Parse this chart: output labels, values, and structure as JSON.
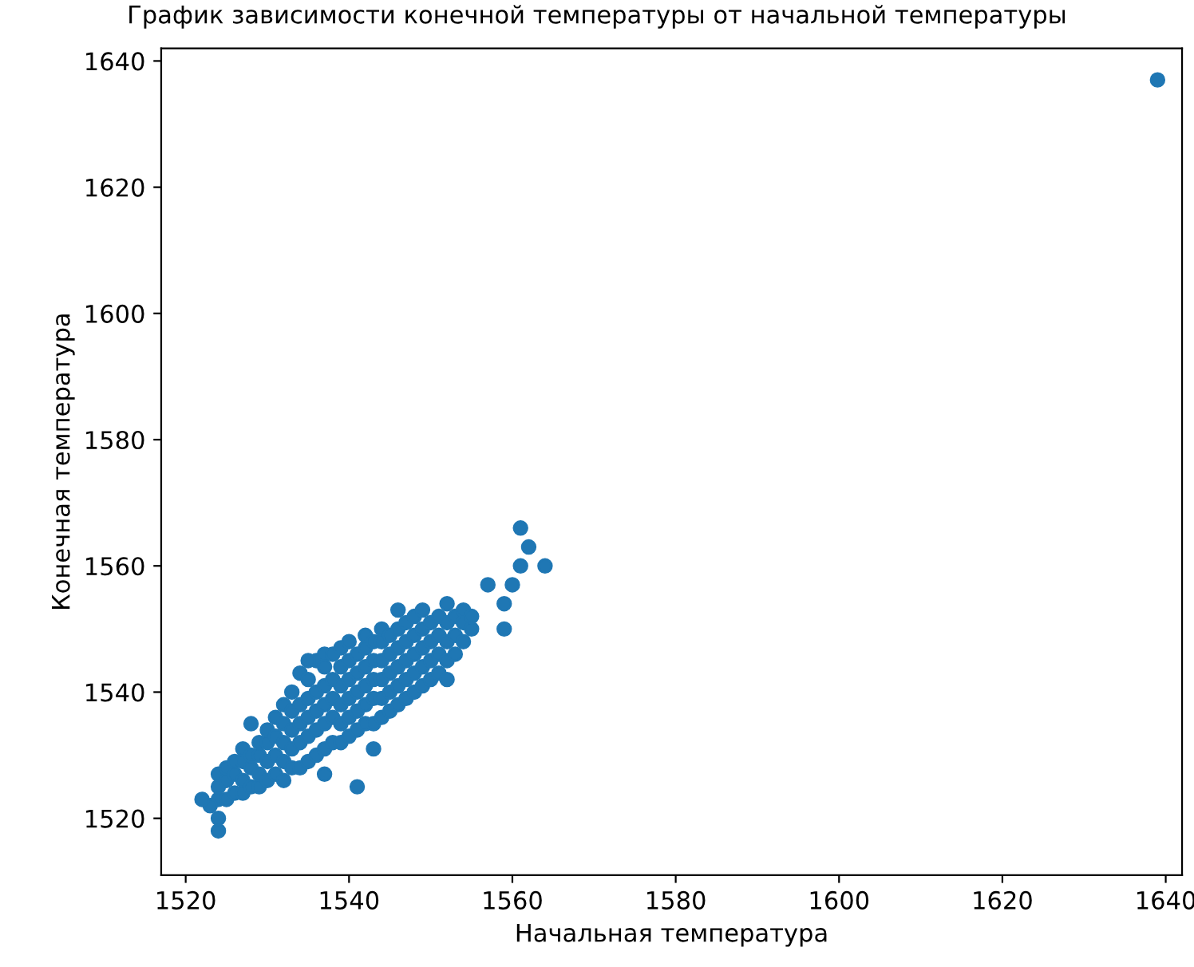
{
  "chart_data": {
    "type": "scatter",
    "title": "График зависимости конечной температуры от начальной температуры",
    "xlabel": "Начальная температура",
    "ylabel": "Конечная температура",
    "marker": "circle",
    "grid": false,
    "xlim": [
      1517,
      1642
    ],
    "ylim": [
      1511,
      1642
    ],
    "xticks": [
      1520,
      1540,
      1560,
      1580,
      1600,
      1620,
      1640
    ],
    "yticks": [
      1520,
      1540,
      1560,
      1580,
      1600,
      1620,
      1640
    ],
    "series": [
      {
        "color": "#1f77b4",
        "x": [
          1524,
          1524,
          1524,
          1525,
          1525,
          1525,
          1526,
          1526,
          1526,
          1527,
          1527,
          1527,
          1527,
          1528,
          1528,
          1528,
          1529,
          1529,
          1529,
          1529,
          1530,
          1530,
          1530,
          1530,
          1531,
          1531,
          1531,
          1531,
          1532,
          1532,
          1532,
          1532,
          1532,
          1533,
          1533,
          1533,
          1533,
          1533,
          1534,
          1534,
          1534,
          1534,
          1534,
          1535,
          1535,
          1535,
          1535,
          1535,
          1536,
          1536,
          1536,
          1536,
          1536,
          1537,
          1537,
          1537,
          1537,
          1537,
          1537,
          1538,
          1538,
          1538,
          1538,
          1538,
          1539,
          1539,
          1539,
          1539,
          1539,
          1539,
          1540,
          1540,
          1540,
          1540,
          1540,
          1540,
          1541,
          1541,
          1541,
          1541,
          1541,
          1542,
          1542,
          1542,
          1542,
          1542,
          1542,
          1543,
          1543,
          1543,
          1543,
          1543,
          1544,
          1544,
          1544,
          1544,
          1544,
          1544,
          1545,
          1545,
          1545,
          1545,
          1545,
          1546,
          1546,
          1546,
          1546,
          1546,
          1547,
          1547,
          1547,
          1547,
          1547,
          1548,
          1548,
          1548,
          1548,
          1548,
          1549,
          1549,
          1549,
          1549,
          1549,
          1550,
          1550,
          1550,
          1550,
          1551,
          1551,
          1551,
          1551,
          1552,
          1552,
          1552,
          1552,
          1553,
          1553,
          1553,
          1554,
          1554,
          1554,
          1555,
          1555,
          1561,
          1562,
          1564,
          1561,
          1560,
          1557,
          1559,
          1559,
          1528,
          1541,
          1543,
          1552,
          1524,
          1524,
          1523,
          1522,
          1546,
          1535,
          1537,
          1639
        ],
        "values": [
          1523,
          1525,
          1527,
          1523,
          1526,
          1528,
          1524,
          1527,
          1529,
          1524,
          1526,
          1529,
          1531,
          1525,
          1528,
          1530,
          1525,
          1527,
          1530,
          1532,
          1526,
          1529,
          1532,
          1534,
          1527,
          1530,
          1533,
          1536,
          1526,
          1529,
          1532,
          1535,
          1538,
          1528,
          1531,
          1534,
          1537,
          1540,
          1528,
          1532,
          1535,
          1538,
          1543,
          1529,
          1533,
          1536,
          1539,
          1542,
          1530,
          1534,
          1537,
          1540,
          1545,
          1531,
          1535,
          1538,
          1541,
          1544,
          1546,
          1532,
          1536,
          1539,
          1542,
          1546,
          1532,
          1535,
          1538,
          1541,
          1544,
          1547,
          1533,
          1536,
          1539,
          1542,
          1545,
          1548,
          1534,
          1537,
          1540,
          1543,
          1546,
          1535,
          1538,
          1541,
          1544,
          1547,
          1549,
          1535,
          1539,
          1542,
          1545,
          1548,
          1536,
          1539,
          1542,
          1545,
          1548,
          1550,
          1537,
          1540,
          1543,
          1546,
          1549,
          1538,
          1541,
          1544,
          1547,
          1550,
          1539,
          1542,
          1545,
          1548,
          1551,
          1540,
          1543,
          1546,
          1549,
          1552,
          1541,
          1544,
          1547,
          1550,
          1553,
          1542,
          1545,
          1548,
          1551,
          1543,
          1546,
          1549,
          1552,
          1545,
          1548,
          1551,
          1554,
          1546,
          1549,
          1552,
          1548,
          1551,
          1553,
          1550,
          1552,
          1566,
          1563,
          1560,
          1560,
          1557,
          1557,
          1554,
          1550,
          1535,
          1525,
          1531,
          1542,
          1518,
          1520,
          1522,
          1523,
          1553,
          1545,
          1527,
          1637
        ]
      }
    ]
  }
}
